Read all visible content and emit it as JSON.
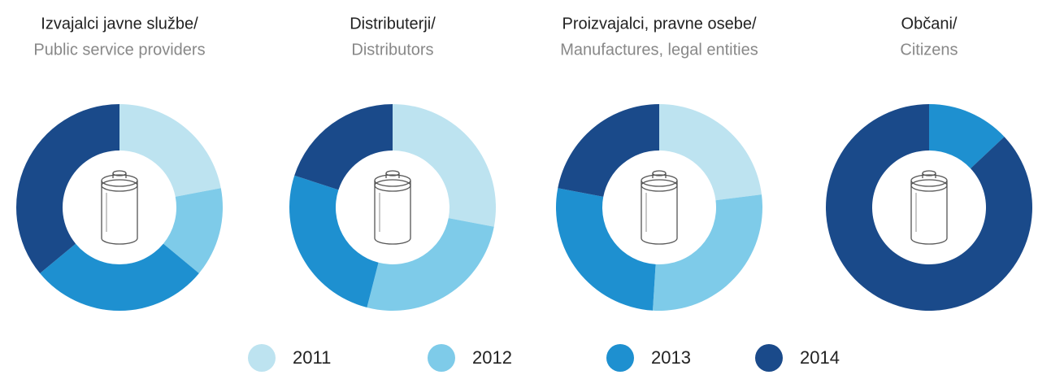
{
  "chart_data": [
    {
      "type": "donut",
      "title": "Izvajalci javne službe/",
      "subtitle": "Public service providers",
      "categories": [
        "2011",
        "2012",
        "2013",
        "2014"
      ],
      "values": [
        22,
        14,
        28,
        36
      ],
      "colors": [
        "#bde3f0",
        "#7ecbe9",
        "#1e90d0",
        "#1a4a8a"
      ]
    },
    {
      "type": "donut",
      "title": "Distributerji/",
      "subtitle": "Distributors",
      "categories": [
        "2011",
        "2012",
        "2013",
        "2014"
      ],
      "values": [
        28,
        26,
        26,
        20
      ],
      "colors": [
        "#bde3f0",
        "#7ecbe9",
        "#1e90d0",
        "#1a4a8a"
      ]
    },
    {
      "type": "donut",
      "title": "Proizvajalci, pravne osebe/",
      "subtitle": "Manufactures, legal entities",
      "categories": [
        "2011",
        "2012",
        "2013",
        "2014"
      ],
      "values": [
        23,
        28,
        27,
        22
      ],
      "colors": [
        "#bde3f0",
        "#7ecbe9",
        "#1e90d0",
        "#1a4a8a"
      ]
    },
    {
      "type": "donut",
      "title": "Občani/",
      "subtitle": "Citizens",
      "categories": [
        "2011",
        "2012",
        "2013",
        "2014"
      ],
      "values": [
        0,
        0,
        13,
        87
      ],
      "colors": [
        "#bde3f0",
        "#7ecbe9",
        "#1e90d0",
        "#1a4a8a"
      ]
    }
  ]
}
